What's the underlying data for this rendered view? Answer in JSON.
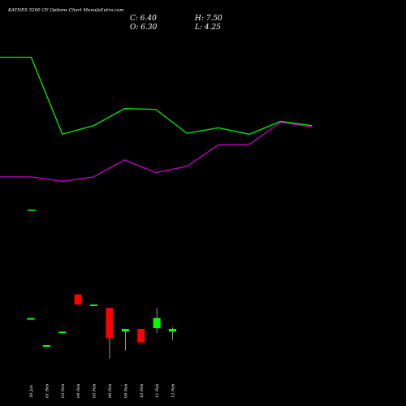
{
  "header": {
    "title": "KAYNES 5200 CE Options Chart MunafaSutra.com",
    "close_label": "C: 6.40",
    "open_label": "O: 6.30",
    "high_label": "H: 7.50",
    "low_label": "L: 4.25"
  },
  "colors": {
    "background": "#000000",
    "up": "#00ff00",
    "down": "#ff0000",
    "line_green": "#00ee00",
    "line_magenta": "#cc00cc",
    "text": "#ffffff"
  },
  "chart_data": {
    "type": "candlestick",
    "categories": [
      "30 Jan",
      "01 Feb",
      "03 Feb",
      "04 Feb",
      "05 Feb",
      "06 Feb",
      "09 Feb",
      "10 Feb",
      "11 Feb",
      "12 Feb"
    ],
    "candles": [
      {
        "open": 220,
        "high": 220,
        "low": 220,
        "close": 220
      },
      {
        "open": 180,
        "high": 180,
        "low": 180,
        "close": 180
      },
      {
        "open": 200,
        "high": 200,
        "low": 200,
        "close": 200
      },
      {
        "open": 255,
        "high": 255,
        "low": 240,
        "close": 240
      },
      {
        "open": 240,
        "high": 240,
        "low": 240,
        "close": 240
      },
      {
        "open": 235,
        "high": 235,
        "low": 160,
        "close": 190
      },
      {
        "open": 200,
        "high": 204,
        "low": 172,
        "close": 204
      },
      {
        "open": 204,
        "high": 204,
        "low": 184,
        "close": 184
      },
      {
        "open": 205,
        "high": 235,
        "low": 198,
        "close": 220
      },
      {
        "open": 200,
        "high": 206,
        "low": 188,
        "close": 204
      }
    ],
    "line_series": [
      {
        "color": "green",
        "values": [
          6.6,
          6.6,
          4.8,
          5.0,
          5.4,
          5.38,
          4.82,
          4.95,
          4.8,
          5.1,
          5.0
        ]
      },
      {
        "color": "magenta",
        "values": [
          3.8,
          3.8,
          3.7,
          3.8,
          4.2,
          3.9,
          4.05,
          4.55,
          4.56,
          5.08,
          4.97
        ]
      },
      {
        "color": "magenta-x",
        "values": [
          0,
          1,
          2,
          3,
          4,
          5,
          6,
          7,
          8,
          9,
          10
        ]
      }
    ]
  }
}
